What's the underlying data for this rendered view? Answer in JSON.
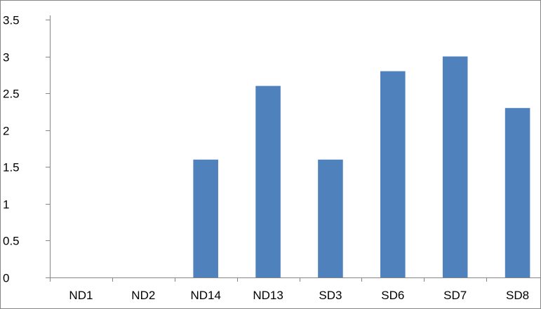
{
  "chart_data": {
    "type": "bar",
    "categories": [
      "ND1",
      "ND2",
      "ND14",
      "ND13",
      "SD3",
      "SD6",
      "SD7",
      "SD8"
    ],
    "values": [
      0,
      0,
      1.6,
      2.6,
      1.6,
      2.8,
      3.0,
      2.3
    ],
    "ylim": [
      0,
      3.5
    ],
    "yticks": [
      "0",
      "0.5",
      "1",
      "1.5",
      "2",
      "2.5",
      "3",
      "3.5"
    ],
    "grid": false,
    "legend": "none",
    "bar_color": "#4F81BD"
  }
}
